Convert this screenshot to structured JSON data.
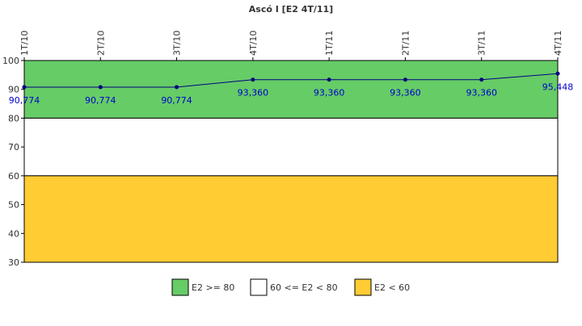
{
  "chart_data": {
    "type": "line",
    "title": "Ascó I [E2 4T/11]",
    "categories": [
      "1T/10",
      "2T/10",
      "3T/10",
      "4T/10",
      "1T/11",
      "2T/11",
      "3T/11",
      "4T/11"
    ],
    "series": [
      {
        "name": "E2",
        "color": "#000080",
        "values": [
          90.774,
          90.774,
          90.774,
          93.36,
          93.36,
          93.36,
          93.36,
          95.448
        ],
        "value_labels": [
          "90,774",
          "90,774",
          "90,774",
          "93,360",
          "93,360",
          "93,360",
          "93,360",
          "95,448"
        ]
      }
    ],
    "value_label_color": "#0000cc",
    "ylim": [
      30,
      100
    ],
    "yticks": [
      30,
      40,
      50,
      60,
      70,
      80,
      90,
      100
    ],
    "bands": [
      {
        "name": "E2 >= 80",
        "color": "#66cc66",
        "from": 80,
        "to": 100
      },
      {
        "name": "60 <= E2 < 80",
        "color": "#ffffff",
        "from": 60,
        "to": 80
      },
      {
        "name": "E2 < 60",
        "color": "#ffcc33",
        "from": 30,
        "to": 60
      }
    ]
  }
}
